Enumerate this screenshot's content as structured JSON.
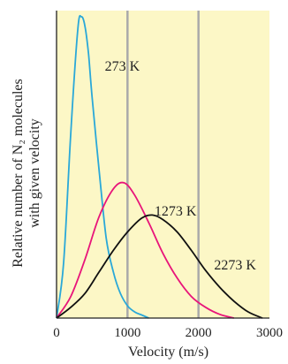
{
  "chart_data": {
    "type": "line",
    "title": "",
    "xlabel": "Velocity (m/s)",
    "ylabel_lines": [
      "Relative number of N₂ molecules",
      "with given velocity"
    ],
    "xlim": [
      0,
      3000
    ],
    "ylim": [
      0,
      1.0
    ],
    "xticks": [
      "0",
      "1000",
      "2000",
      "3000"
    ],
    "grid": {
      "vertical_at": [
        1000,
        2000
      ],
      "color": "#aaaaaa"
    },
    "background": "#fcf7c6",
    "series": [
      {
        "name": "273 K",
        "color": "#2aa8d8",
        "x": [
          0,
          100,
          200,
          300,
          350,
          400,
          450,
          500,
          600,
          700,
          800,
          900,
          1000,
          1100,
          1200,
          1300
        ],
        "y": [
          0,
          0.18,
          0.6,
          0.94,
          0.98,
          0.95,
          0.86,
          0.72,
          0.48,
          0.26,
          0.15,
          0.08,
          0.04,
          0.02,
          0.01,
          0
        ]
      },
      {
        "name": "1273 K",
        "color": "#e8157a",
        "x": [
          0,
          200,
          400,
          600,
          800,
          950,
          1100,
          1300,
          1500,
          1700,
          1900,
          2100,
          2300,
          2500
        ],
        "y": [
          0,
          0.07,
          0.19,
          0.33,
          0.42,
          0.44,
          0.4,
          0.31,
          0.21,
          0.13,
          0.07,
          0.035,
          0.012,
          0
        ]
      },
      {
        "name": "2273 K",
        "color": "#111111",
        "x": [
          0,
          200,
          400,
          600,
          800,
          1000,
          1200,
          1350,
          1500,
          1700,
          1900,
          2100,
          2300,
          2500,
          2700,
          2900
        ],
        "y": [
          0,
          0.035,
          0.08,
          0.15,
          0.22,
          0.28,
          0.325,
          0.335,
          0.32,
          0.28,
          0.22,
          0.155,
          0.1,
          0.055,
          0.02,
          0
        ]
      }
    ]
  }
}
